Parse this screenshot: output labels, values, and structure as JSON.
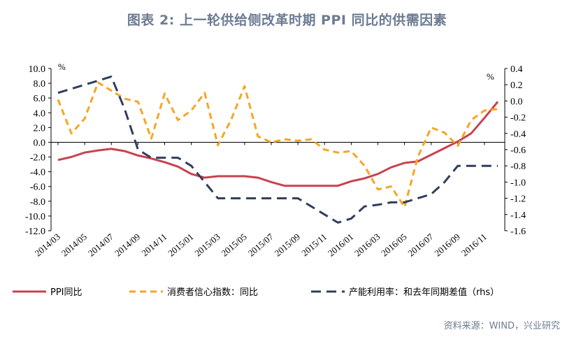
{
  "title": "图表 2:   上一轮供给侧改革时期 PPI 同比的供需因素",
  "source": "资料来源：WIND，兴业研究",
  "colors": {
    "ppi": "#c8424f",
    "confidence": "#f5a623",
    "capacity": "#2f3e5c",
    "title": "#6d7b92"
  },
  "chart_data": {
    "type": "line",
    "left_unit": "%",
    "right_unit": "%",
    "ylim": [
      -12,
      10
    ],
    "yticks": [
      "10.0",
      "8.0",
      "6.0",
      "4.0",
      "2.0",
      "0.0",
      "-2.0",
      "-4.0",
      "-6.0",
      "-8.0",
      "-10.0",
      "-12.0"
    ],
    "ylim_right": [
      -1.6,
      0.4
    ],
    "yticks_right": [
      "0.4",
      "0.2",
      "0.0",
      "-0.2",
      "-0.4",
      "-0.6",
      "-0.8",
      "-1.0",
      "-1.2",
      "-1.4",
      "-1.6"
    ],
    "xtick_labels": [
      "2014/03",
      "2014/05",
      "2014/07",
      "2014/09",
      "2014/11",
      "2015/01",
      "2015/03",
      "2015/05",
      "2015/07",
      "2015/09",
      "2015/11",
      "2016/01",
      "2016/03",
      "2016/05",
      "2016/07",
      "2016/09",
      "2016/11"
    ],
    "x": [
      "2014/03",
      "2014/04",
      "2014/05",
      "2014/06",
      "2014/07",
      "2014/08",
      "2014/09",
      "2014/10",
      "2014/11",
      "2014/12",
      "2015/01",
      "2015/02",
      "2015/03",
      "2015/04",
      "2015/05",
      "2015/06",
      "2015/07",
      "2015/08",
      "2015/09",
      "2015/10",
      "2015/11",
      "2015/12",
      "2016/01",
      "2016/02",
      "2016/03",
      "2016/04",
      "2016/05",
      "2016/06",
      "2016/07",
      "2016/08",
      "2016/09",
      "2016/10",
      "2016/11",
      "2016/12"
    ],
    "series": [
      {
        "name": "PPI同比",
        "axis": "left",
        "style": "solid",
        "values": [
          -2.4,
          -2.0,
          -1.4,
          -1.1,
          -0.9,
          -1.2,
          -1.8,
          -2.2,
          -2.7,
          -3.3,
          -4.3,
          -4.8,
          -4.6,
          -4.6,
          -4.6,
          -4.8,
          -5.4,
          -5.9,
          -5.9,
          -5.9,
          -5.9,
          -5.9,
          -5.3,
          -4.9,
          -4.3,
          -3.4,
          -2.8,
          -2.6,
          -1.7,
          -0.8,
          0.1,
          1.2,
          3.3,
          5.5
        ]
      },
      {
        "name": "消费者信心指数：同比",
        "axis": "left",
        "style": "dashed",
        "values": [
          5.8,
          1.2,
          3.2,
          8.1,
          7.0,
          5.9,
          5.5,
          0.5,
          6.6,
          3.0,
          4.3,
          6.7,
          -0.4,
          3.1,
          7.6,
          0.8,
          0.0,
          0.4,
          0.2,
          0.4,
          -1.0,
          -1.4,
          -1.2,
          -3.2,
          -6.4,
          -6.0,
          -8.8,
          -2.0,
          2.0,
          1.3,
          -0.5,
          3.0,
          4.3,
          4.5
        ]
      },
      {
        "name": "产能利用率：和去年同期差值（rhs）",
        "axis": "right",
        "style": "dashed",
        "values": [
          0.1,
          0.15,
          0.2,
          0.25,
          0.3,
          -0.1,
          -0.6,
          -0.7,
          -0.7,
          -0.7,
          -0.8,
          -1.0,
          -1.2,
          -1.2,
          -1.2,
          -1.2,
          -1.2,
          -1.2,
          -1.2,
          -1.3,
          -1.4,
          -1.5,
          -1.45,
          -1.3,
          -1.28,
          -1.25,
          -1.25,
          -1.2,
          -1.15,
          -1.0,
          -0.8,
          -0.8,
          -0.8,
          -0.8
        ]
      }
    ],
    "legend": [
      "PPI同比",
      "消费者信心指数：同比",
      "产能利用率：和去年同期差值（rhs）"
    ],
    "legend_position": "bottom",
    "grid": false
  }
}
